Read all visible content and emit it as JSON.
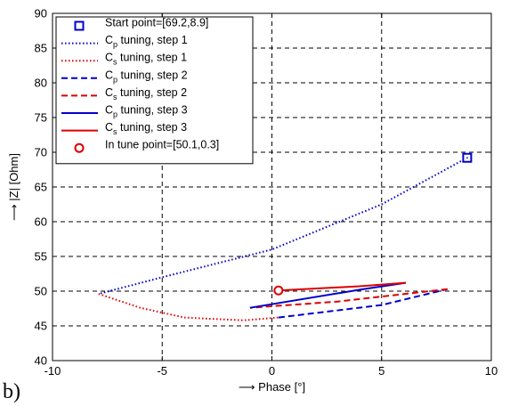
{
  "panel_label": "b)",
  "chart_data": {
    "type": "line",
    "xlabel": "⟶ Phase [°]",
    "ylabel": "⟶ |Z| [Ohm]",
    "xlim": [
      -10,
      10
    ],
    "ylim": [
      40,
      90
    ],
    "xticks": [
      -10,
      -5,
      0,
      5,
      10
    ],
    "yticks": [
      40,
      45,
      50,
      55,
      60,
      65,
      70,
      75,
      80,
      85,
      90
    ],
    "grid": true,
    "legend_position": "top-left",
    "series": [
      {
        "name": "Start point=[69.2,8.9]",
        "kind": "marker",
        "marker": "square",
        "color": "#0000CC",
        "dash": "none",
        "x": [
          8.9
        ],
        "y": [
          69.2
        ]
      },
      {
        "name": "C_p tuning, step 1",
        "legend_main": "C",
        "legend_sub": "p",
        "legend_rest": " tuning, step 1",
        "kind": "line",
        "color": "#0000CC",
        "dash": "dotted",
        "x": [
          8.9,
          5.0,
          0.0,
          -5.0,
          -7.9
        ],
        "y": [
          69.2,
          62.5,
          56.0,
          52.0,
          49.6
        ]
      },
      {
        "name": "C_s tuning, step 1",
        "legend_main": "C",
        "legend_sub": "s",
        "legend_rest": " tuning, step 1",
        "kind": "line",
        "color": "#DD0000",
        "dash": "dotted",
        "x": [
          -7.9,
          -6.0,
          -4.0,
          -1.3,
          0.3
        ],
        "y": [
          49.6,
          47.6,
          46.2,
          45.8,
          46.2
        ]
      },
      {
        "name": "C_p tuning, step 2",
        "legend_main": "C",
        "legend_sub": "p",
        "legend_rest": " tuning, step 2",
        "kind": "line",
        "color": "#0000CC",
        "dash": "dashed",
        "x": [
          0.3,
          5.0,
          8.0
        ],
        "y": [
          46.2,
          48.0,
          50.3
        ]
      },
      {
        "name": "C_s tuning, step 2",
        "legend_main": "C",
        "legend_sub": "s",
        "legend_rest": " tuning, step 2",
        "kind": "line",
        "color": "#DD0000",
        "dash": "dashed",
        "x": [
          8.0,
          3.0,
          -1.0
        ],
        "y": [
          50.3,
          48.5,
          47.6
        ]
      },
      {
        "name": "C_p tuning, step 3",
        "legend_main": "C",
        "legend_sub": "p",
        "legend_rest": " tuning, step 3",
        "kind": "line",
        "color": "#0000CC",
        "dash": "solid",
        "x": [
          -1.0,
          4.0,
          6.1
        ],
        "y": [
          47.6,
          50.2,
          51.2
        ]
      },
      {
        "name": "C_s tuning, step 3",
        "legend_main": "C",
        "legend_sub": "s",
        "legend_rest": " tuning, step 3",
        "kind": "line",
        "color": "#DD0000",
        "dash": "solid",
        "x": [
          6.1,
          4.0,
          0.3
        ],
        "y": [
          51.2,
          50.7,
          50.1
        ]
      },
      {
        "name": "In tune point=[50.1,0.3]",
        "kind": "marker",
        "marker": "circle",
        "color": "#DD0000",
        "dash": "none",
        "x": [
          0.3
        ],
        "y": [
          50.1
        ]
      }
    ]
  }
}
